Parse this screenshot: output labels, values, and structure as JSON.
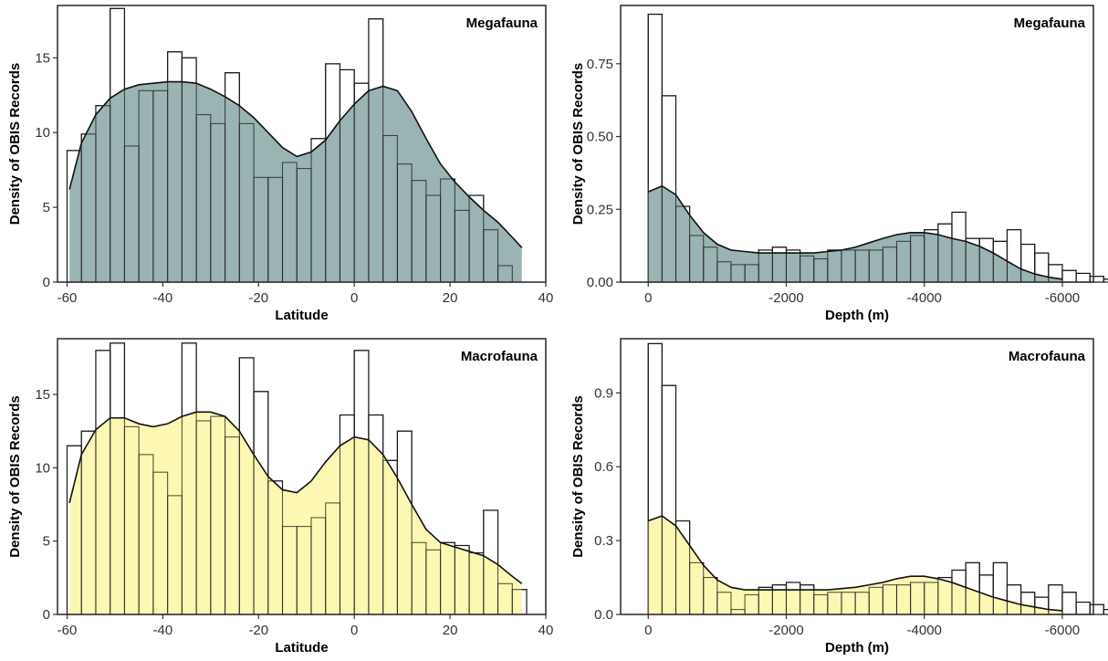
{
  "chart_data": [
    {
      "type": "bar",
      "panel_label": "Megafauna",
      "xlabel": "Latitude",
      "ylabel": "Density of OBIS Records",
      "xlim": [
        -62,
        40
      ],
      "ylim": [
        0,
        18.5
      ],
      "xticks": [
        -60,
        -40,
        -20,
        0,
        20,
        40
      ],
      "yticks": [
        0,
        5,
        10,
        15
      ],
      "xtick_labels": [
        "-60",
        "-40",
        "-20",
        "0",
        "20",
        "40"
      ],
      "ytick_labels": [
        "0",
        "5",
        "10",
        "15"
      ],
      "bin_start": -60,
      "bin_width": 3,
      "histogram": [
        8.8,
        9.9,
        11.8,
        18.3,
        9.1,
        12.8,
        12.8,
        15.4,
        15.0,
        11.2,
        10.6,
        14.0,
        10.6,
        7.0,
        7.0,
        8.0,
        7.6,
        9.6,
        14.6,
        14.2,
        13.3,
        17.6,
        9.8,
        7.9,
        6.8,
        5.8,
        6.9,
        4.8,
        5.8,
        3.5,
        1.1
      ],
      "density_x": [
        -59.5,
        -57,
        -54,
        -51,
        -48,
        -45,
        -42,
        -39,
        -36,
        -33,
        -30,
        -27,
        -24,
        -21,
        -18,
        -15,
        -12,
        -9,
        -6,
        -3,
        0,
        3,
        6,
        9,
        12,
        15,
        18,
        21,
        24,
        27,
        30,
        33,
        35
      ],
      "density_y": [
        6.2,
        9.3,
        11.2,
        12.3,
        12.9,
        13.2,
        13.3,
        13.4,
        13.4,
        13.3,
        12.9,
        12.4,
        11.8,
        11.0,
        10.0,
        9.0,
        8.4,
        8.7,
        9.5,
        10.8,
        11.9,
        12.8,
        13.1,
        12.8,
        11.4,
        9.6,
        7.9,
        6.7,
        5.7,
        4.8,
        4.0,
        3.0,
        2.3
      ],
      "fill_color": "#8fabab",
      "fill_opacity": 0.9
    },
    {
      "type": "bar",
      "panel_label": "Megafauna",
      "xlabel": "Depth (m)",
      "ylabel": "Density of OBIS Records",
      "xlim": [
        400,
        -6450
      ],
      "ylim": [
        0,
        0.95
      ],
      "xticks": [
        0,
        -2000,
        -4000,
        -6000
      ],
      "yticks": [
        0,
        0.25,
        0.5,
        0.75
      ],
      "xtick_labels": [
        "0",
        "-2000",
        "-4000",
        "-6000"
      ],
      "ytick_labels": [
        "0.00",
        "0.25",
        "0.50",
        "0.75"
      ],
      "bin_start": 0,
      "bin_width": -200,
      "histogram": [
        0.92,
        0.64,
        0.26,
        0.16,
        0.12,
        0.07,
        0.06,
        0.06,
        0.11,
        0.12,
        0.11,
        0.09,
        0.08,
        0.11,
        0.11,
        0.11,
        0.11,
        0.12,
        0.14,
        0.16,
        0.18,
        0.2,
        0.24,
        0.15,
        0.15,
        0.14,
        0.18,
        0.13,
        0.1,
        0.06,
        0.04,
        0.03,
        0.02,
        0.01,
        0.01
      ],
      "density_x": [
        0,
        -200,
        -400,
        -600,
        -800,
        -1000,
        -1200,
        -1400,
        -1600,
        -1800,
        -2000,
        -2200,
        -2400,
        -2600,
        -2800,
        -3000,
        -3200,
        -3400,
        -3600,
        -3800,
        -4000,
        -4200,
        -4400,
        -4600,
        -4800,
        -5000,
        -5200,
        -5400,
        -5600,
        -5800,
        -6000
      ],
      "density_y": [
        0.31,
        0.33,
        0.3,
        0.23,
        0.17,
        0.13,
        0.11,
        0.105,
        0.1,
        0.1,
        0.1,
        0.1,
        0.1,
        0.105,
        0.11,
        0.12,
        0.135,
        0.15,
        0.163,
        0.17,
        0.17,
        0.163,
        0.15,
        0.14,
        0.123,
        0.1,
        0.072,
        0.045,
        0.028,
        0.017,
        0.01
      ],
      "fill_color": "#8fabab",
      "fill_opacity": 0.9
    },
    {
      "type": "bar",
      "panel_label": "Macrofauna",
      "xlabel": "Latitude",
      "ylabel": "Density of OBIS Records",
      "xlim": [
        -62,
        40
      ],
      "ylim": [
        0,
        18.8
      ],
      "xticks": [
        -60,
        -40,
        -20,
        0,
        20,
        40
      ],
      "yticks": [
        0,
        5,
        10,
        15
      ],
      "xtick_labels": [
        "-60",
        "-40",
        "-20",
        "0",
        "20",
        "40"
      ],
      "ytick_labels": [
        "0",
        "5",
        "10",
        "15"
      ],
      "bin_start": -60,
      "bin_width": 3,
      "histogram": [
        11.5,
        12.5,
        18.0,
        18.5,
        12.8,
        10.9,
        9.7,
        8.1,
        18.5,
        13.2,
        13.5,
        12.1,
        17.5,
        15.2,
        9.1,
        6.0,
        6.0,
        6.6,
        7.6,
        13.6,
        18.0,
        13.6,
        10.5,
        12.5,
        4.9,
        4.4,
        4.9,
        4.7,
        4.2,
        7.1,
        2.1,
        1.7
      ],
      "density_x": [
        -59.5,
        -57,
        -54,
        -51,
        -48,
        -45,
        -42,
        -39,
        -36,
        -33,
        -30,
        -27,
        -24,
        -21,
        -18,
        -15,
        -12,
        -9,
        -6,
        -3,
        0,
        3,
        6,
        9,
        12,
        15,
        18,
        21,
        24,
        27,
        30,
        33,
        35
      ],
      "density_y": [
        7.6,
        10.9,
        12.6,
        13.4,
        13.4,
        13.0,
        12.8,
        13.0,
        13.5,
        13.8,
        13.8,
        13.5,
        12.5,
        10.9,
        9.4,
        8.5,
        8.3,
        9.1,
        10.4,
        11.5,
        12.1,
        11.9,
        10.9,
        9.3,
        7.5,
        5.8,
        4.9,
        4.6,
        4.3,
        4.0,
        3.4,
        2.6,
        2.1
      ],
      "fill_color": "#fbf7a6",
      "fill_opacity": 0.85
    },
    {
      "type": "bar",
      "panel_label": "Macrofauna",
      "xlabel": "Depth (m)",
      "ylabel": "Density of OBIS Records",
      "xlim": [
        400,
        -6450
      ],
      "ylim": [
        0,
        1.12
      ],
      "xticks": [
        0,
        -2000,
        -4000,
        -6000
      ],
      "yticks": [
        0,
        0.3,
        0.6,
        0.9
      ],
      "xtick_labels": [
        "0",
        "-2000",
        "-4000",
        "-6000"
      ],
      "ytick_labels": [
        "0.0",
        "0.3",
        "0.6",
        "0.9"
      ],
      "bin_start": 0,
      "bin_width": -200,
      "histogram": [
        1.1,
        0.93,
        0.38,
        0.21,
        0.15,
        0.09,
        0.02,
        0.08,
        0.11,
        0.12,
        0.13,
        0.12,
        0.08,
        0.09,
        0.09,
        0.09,
        0.11,
        0.12,
        0.12,
        0.13,
        0.13,
        0.15,
        0.18,
        0.21,
        0.16,
        0.21,
        0.12,
        0.09,
        0.07,
        0.12,
        0.09,
        0.05,
        0.04,
        0.02,
        0.02
      ],
      "density_x": [
        0,
        -200,
        -400,
        -600,
        -800,
        -1000,
        -1200,
        -1400,
        -1600,
        -1800,
        -2000,
        -2200,
        -2400,
        -2600,
        -2800,
        -3000,
        -3200,
        -3400,
        -3600,
        -3800,
        -4000,
        -4200,
        -4400,
        -4600,
        -4800,
        -5000,
        -5200,
        -5400,
        -5600,
        -5800,
        -6000
      ],
      "density_y": [
        0.38,
        0.4,
        0.36,
        0.28,
        0.2,
        0.14,
        0.11,
        0.1,
        0.1,
        0.1,
        0.1,
        0.1,
        0.1,
        0.1,
        0.105,
        0.11,
        0.12,
        0.13,
        0.145,
        0.155,
        0.155,
        0.145,
        0.13,
        0.11,
        0.09,
        0.07,
        0.055,
        0.04,
        0.03,
        0.02,
        0.015
      ],
      "fill_color": "#fbf7a6",
      "fill_opacity": 0.85
    }
  ]
}
